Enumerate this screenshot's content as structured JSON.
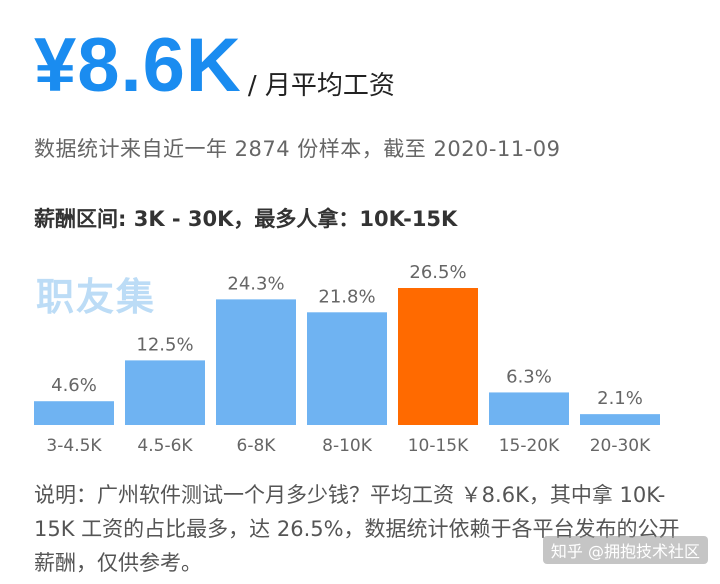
{
  "header": {
    "salary": "¥8.6K",
    "unit": "/ 月平均工资"
  },
  "subtitle": "数据统计来自近一年 2874 份样本，截至 2020-11-09",
  "range_text": "薪酬区间: 3K - 30K，最多人拿：10K-15K",
  "watermark": "职友集",
  "note": "说明：广州软件测试一个月多少钱？平均工资 ￥8.6K，其中拿 10K-15K 工资的占比最多，达 26.5%，数据统计依赖于各平台发布的公开薪酬，仅供参考。",
  "credit": "知乎 @拥抱技术社区",
  "colors": {
    "bar": "#6fb3f2",
    "highlight": "#ff6a00",
    "text": "#666666"
  },
  "chart_data": {
    "type": "bar",
    "categories": [
      "3-4.5K",
      "4.5-6K",
      "6-8K",
      "8-10K",
      "10-15K",
      "15-20K",
      "20-30K"
    ],
    "values": [
      4.6,
      12.5,
      24.3,
      21.8,
      26.5,
      6.3,
      2.1
    ],
    "labels": [
      "4.6%",
      "12.5%",
      "24.3%",
      "21.8%",
      "26.5%",
      "6.3%",
      "2.1%"
    ],
    "highlight_index": 4,
    "title": "",
    "xlabel": "",
    "ylabel": "",
    "ylim": [
      0,
      26.5
    ],
    "grid": false
  }
}
